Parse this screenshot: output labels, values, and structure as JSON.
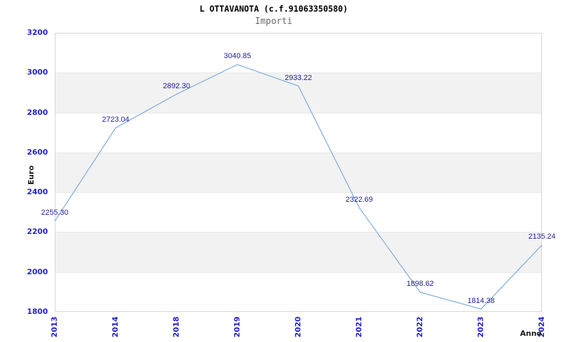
{
  "chart_data": {
    "type": "line",
    "title": "L OTTAVANOTA (c.f.91063350580)",
    "subtitle": "Importi",
    "xlabel": "Anno",
    "ylabel": "Euro",
    "categories": [
      "2013",
      "2014",
      "2018",
      "2019",
      "2020",
      "2021",
      "2022",
      "2023",
      "2024"
    ],
    "values": [
      2255.3,
      2723.04,
      2892.3,
      3040.85,
      2933.22,
      2322.69,
      1898.62,
      1814.38,
      2135.24
    ],
    "point_labels": [
      "2255.30",
      "2723.04",
      "2892.30",
      "3040.85",
      "2933.22",
      "2322.69",
      "1898.62",
      "1814.38",
      "2135.24"
    ],
    "ylim": [
      1800,
      3200
    ],
    "yticks": [
      1800,
      2000,
      2200,
      2400,
      2600,
      2800,
      3000,
      3200
    ],
    "grid": "alternating-horizontal-bands",
    "legend_position": "none",
    "colors": {
      "line": "#7aabe0",
      "band": "#f2f2f2",
      "band_border": "#e7e7e7",
      "plot_border": "#d6d6d6",
      "tick_label": "#2323cc",
      "point_label": "#1f1f96",
      "axis_title": "#1a1a1a",
      "title": "#000000",
      "subtitle": "#6b6b6b"
    }
  }
}
